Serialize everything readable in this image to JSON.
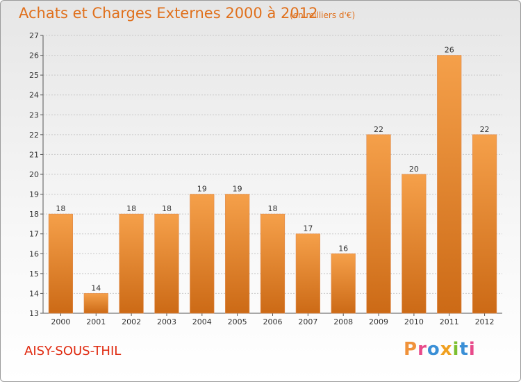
{
  "chart_data": {
    "type": "bar",
    "title": "Achats et Charges Externes 2000 à 2012",
    "subtitle": "(en milliers d'€)",
    "categories": [
      "2000",
      "2001",
      "2002",
      "2003",
      "2004",
      "2005",
      "2006",
      "2007",
      "2008",
      "2009",
      "2010",
      "2011",
      "2012"
    ],
    "values": [
      18,
      14,
      18,
      18,
      19,
      19,
      18,
      17,
      16,
      22,
      20,
      26,
      22
    ],
    "xlabel": "",
    "ylabel": "",
    "ylim": [
      13,
      27
    ],
    "yticks": [
      13,
      14,
      15,
      16,
      17,
      18,
      19,
      20,
      21,
      22,
      23,
      24,
      25,
      26,
      27
    ],
    "grid": true,
    "bar_color": "#f0923a",
    "bar_color_dark": "#d06a14"
  },
  "footer": {
    "commune": "AISY-SOUS-THIL",
    "logo": "Proxiti",
    "logo_colors": [
      "#f0923a",
      "#e84a8a",
      "#3a8fd6",
      "#f0a020",
      "#7cbf30",
      "#3a8fd6",
      "#e84a8a"
    ]
  }
}
